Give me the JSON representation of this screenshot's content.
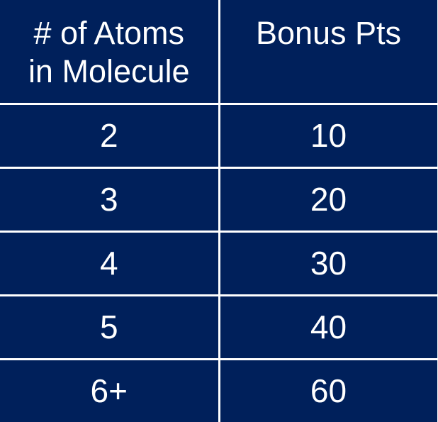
{
  "colors": {
    "cell_background": "#00205B",
    "text": "#FFFFFF",
    "grid_lines": "#FFFFFF"
  },
  "chart_data": {
    "type": "table",
    "columns": [
      {
        "label_lines": [
          "# of Atoms",
          "in Molecule"
        ]
      },
      {
        "label_lines": [
          "Bonus Pts"
        ]
      }
    ],
    "rows": [
      {
        "atoms": "2",
        "bonus": "10"
      },
      {
        "atoms": "3",
        "bonus": "20"
      },
      {
        "atoms": "4",
        "bonus": "30"
      },
      {
        "atoms": "5",
        "bonus": "40"
      },
      {
        "atoms": "6+",
        "bonus": "60"
      }
    ]
  }
}
